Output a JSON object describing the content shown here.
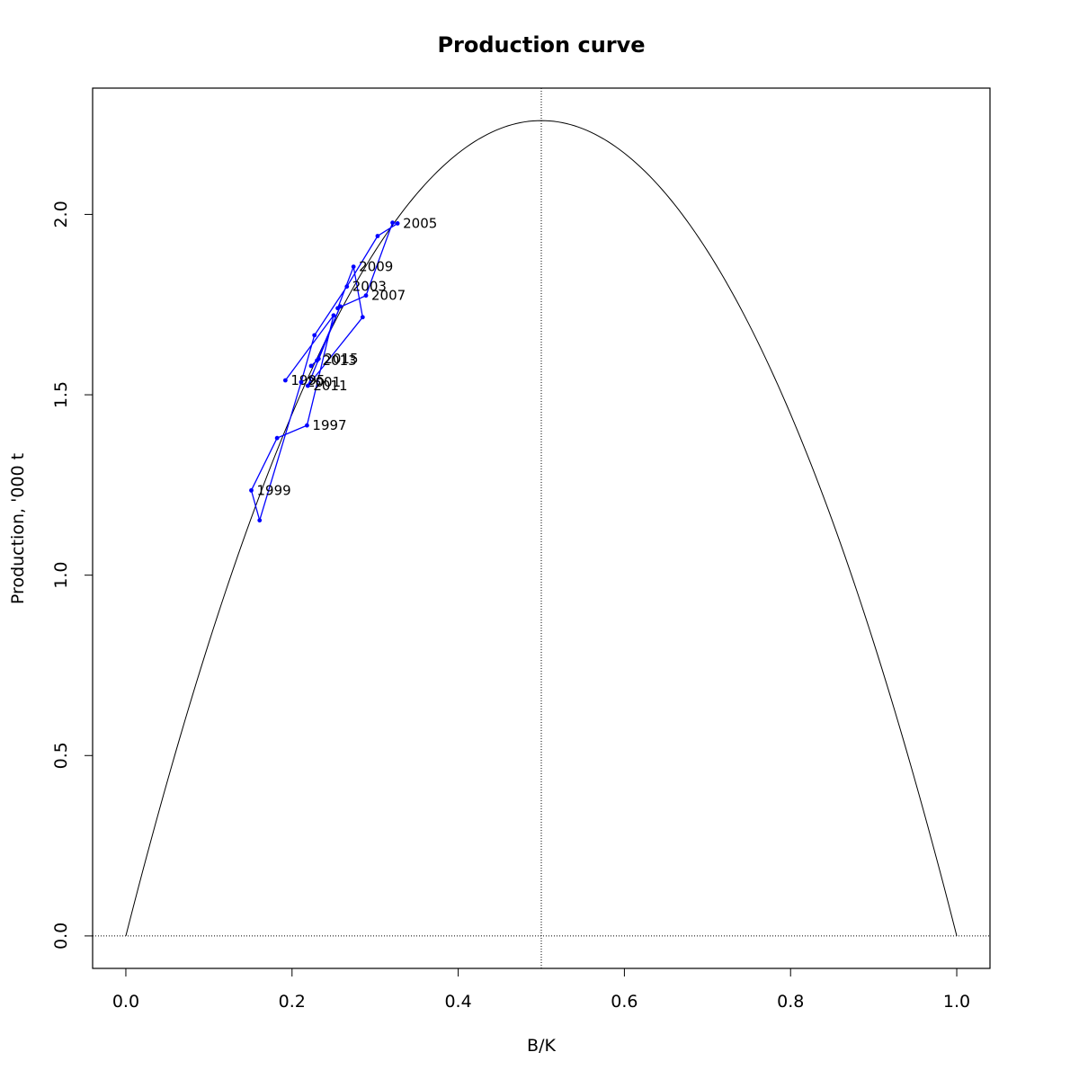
{
  "chart_data": {
    "type": "line",
    "title": "Production curve",
    "xlabel": "B/K",
    "ylabel": "Production, '000 t",
    "xlim": [
      -0.04,
      1.04
    ],
    "ylim": [
      -0.09,
      2.35
    ],
    "x_ticks": [
      0.0,
      0.2,
      0.4,
      0.6,
      0.8,
      1.0
    ],
    "x_tick_labels": [
      "0.0",
      "0.2",
      "0.4",
      "0.6",
      "0.8",
      "1.0"
    ],
    "y_ticks": [
      0.0,
      0.5,
      1.0,
      1.5,
      2.0
    ],
    "y_tick_labels": [
      "0.0",
      "0.5",
      "1.0",
      "1.5",
      "2.0"
    ],
    "grid": false,
    "reference_lines": {
      "vertical_x": 0.5,
      "horizontal_y": 0.0
    },
    "curve": {
      "type": "parabola",
      "peak_x": 0.5,
      "peak_y": 2.26,
      "x_range": [
        0.0,
        1.0
      ],
      "color": "#000000"
    },
    "series": [
      {
        "color": "#0000ff",
        "points": [
          {
            "label": "1995",
            "x": 0.192,
            "y": 1.54
          },
          {
            "x": 0.25,
            "y": 1.72
          },
          {
            "label": "1997",
            "x": 0.218,
            "y": 1.415
          },
          {
            "x": 0.182,
            "y": 1.38
          },
          {
            "label": "1999",
            "x": 0.151,
            "y": 1.235
          },
          {
            "x": 0.161,
            "y": 1.152
          },
          {
            "label": "2001",
            "x": 0.211,
            "y": 1.535
          },
          {
            "x": 0.227,
            "y": 1.665
          },
          {
            "label": "2003",
            "x": 0.266,
            "y": 1.8
          },
          {
            "x": 0.303,
            "y": 1.94
          },
          {
            "label": "2005",
            "x": 0.327,
            "y": 1.975
          },
          {
            "x": 0.321,
            "y": 1.977
          },
          {
            "label": "2007",
            "x": 0.289,
            "y": 1.775
          },
          {
            "x": 0.255,
            "y": 1.74
          },
          {
            "label": "2009",
            "x": 0.274,
            "y": 1.855
          },
          {
            "x": 0.285,
            "y": 1.715
          },
          {
            "label": "2011",
            "x": 0.219,
            "y": 1.525
          },
          {
            "x": 0.258,
            "y": 1.745
          },
          {
            "label": "2013",
            "x": 0.23,
            "y": 1.595
          },
          {
            "x": 0.223,
            "y": 1.58
          },
          {
            "label": "2015",
            "x": 0.232,
            "y": 1.6
          }
        ]
      }
    ]
  }
}
